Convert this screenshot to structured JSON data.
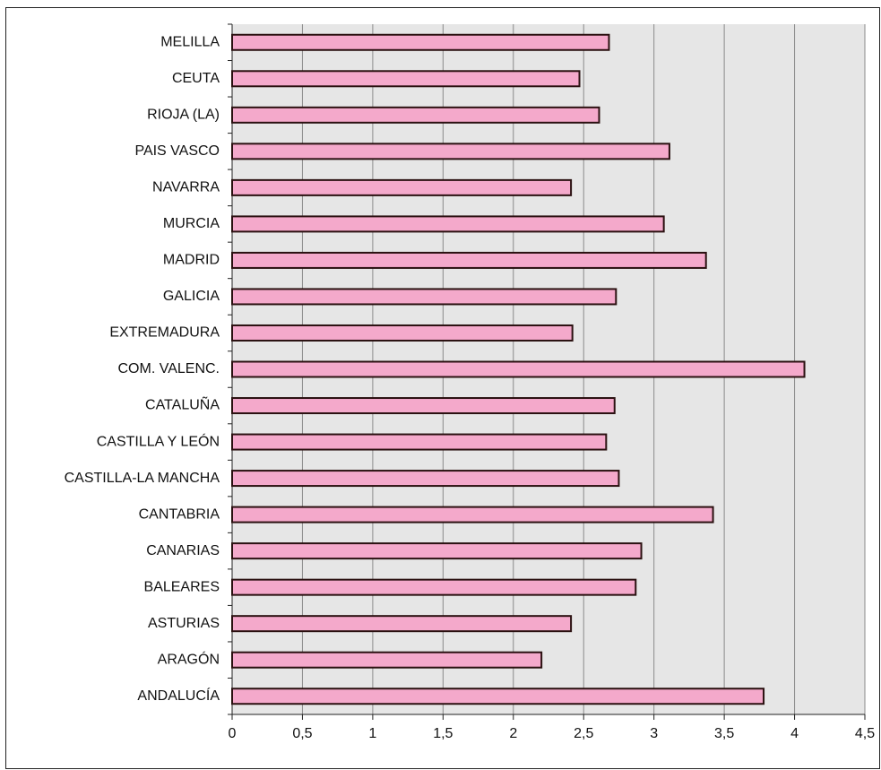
{
  "chart_data": {
    "type": "bar",
    "orientation": "horizontal",
    "categories": [
      "ANDALUCÍA",
      "ARAGÓN",
      "ASTURIAS",
      "BALEARES",
      "CANARIAS",
      "CANTABRIA",
      "CASTILLA-LA MANCHA",
      "CASTILLA Y LEÓN",
      "CATALUÑA",
      "COM. VALENC.",
      "EXTREMADURA",
      "GALICIA",
      "MADRID",
      "MURCIA",
      "NAVARRA",
      "PAIS VASCO",
      "RIOJA (LA)",
      "CEUTA",
      "MELILLA"
    ],
    "values": [
      3.78,
      2.2,
      2.41,
      2.87,
      2.91,
      3.42,
      2.75,
      2.66,
      2.72,
      4.07,
      2.42,
      2.73,
      3.37,
      3.07,
      2.41,
      3.11,
      2.61,
      2.47,
      2.68
    ],
    "color": "#f4a9cb",
    "xlim": [
      0,
      4.5
    ],
    "xticks": [
      0,
      {
        "value": 0.5,
        "label": "0,5"
      },
      1,
      {
        "value": 1.5,
        "label": "1,5"
      },
      2,
      {
        "value": 2.5,
        "label": "2,5"
      },
      3,
      {
        "value": 3.5,
        "label": "3,5"
      },
      4,
      {
        "value": 4.5,
        "label": "4,5"
      }
    ],
    "grid": true
  }
}
